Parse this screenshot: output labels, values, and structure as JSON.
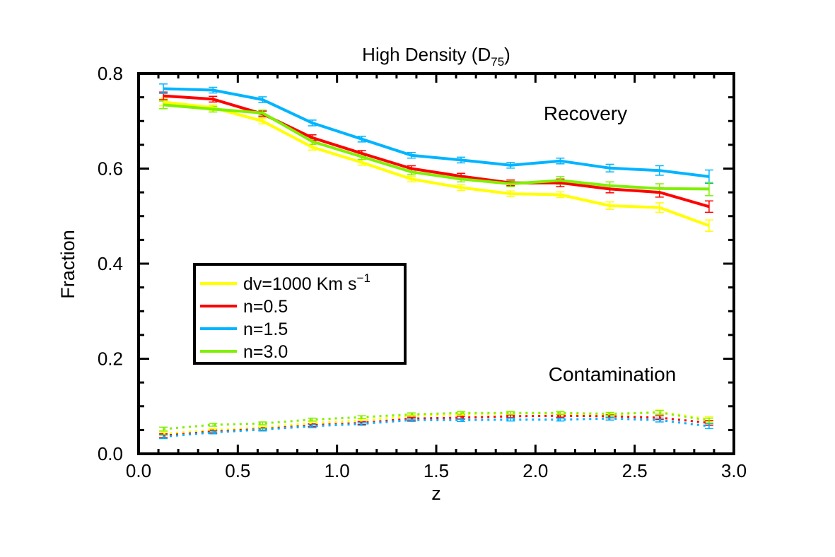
{
  "chart_data": {
    "type": "line",
    "title": {
      "main": "High Density (D",
      "sub": "75",
      "close": ")"
    },
    "xlabel": "z",
    "ylabel": "Fraction",
    "xlim": [
      0.0,
      3.0
    ],
    "ylim": [
      0.0,
      0.8
    ],
    "xticks": [
      {
        "v": 0.0,
        "label": "0.0"
      },
      {
        "v": 0.5,
        "label": "0.5"
      },
      {
        "v": 1.0,
        "label": "1.0"
      },
      {
        "v": 1.5,
        "label": "1.5"
      },
      {
        "v": 2.0,
        "label": "2.0"
      },
      {
        "v": 2.5,
        "label": "2.5"
      },
      {
        "v": 3.0,
        "label": "3.0"
      }
    ],
    "yticks": [
      {
        "v": 0.0,
        "label": "0.0"
      },
      {
        "v": 0.2,
        "label": "0.2"
      },
      {
        "v": 0.4,
        "label": "0.4"
      },
      {
        "v": 0.6,
        "label": "0.6"
      },
      {
        "v": 0.8,
        "label": "0.8"
      }
    ],
    "annotations": {
      "recovery": "Recovery",
      "contamination": "Contamination"
    },
    "legend": {
      "placement": "left-middle",
      "entries": [
        {
          "label": "dv=1000 Km s",
          "sup": "−1",
          "color": "#ffff00"
        },
        {
          "label": "n=0.5",
          "color": "#ff0000"
        },
        {
          "label": "n=1.5",
          "color": "#00b4ff"
        },
        {
          "label": "n=3.0",
          "color": "#7ff000"
        }
      ]
    },
    "x": [
      0.125,
      0.375,
      0.625,
      0.875,
      1.125,
      1.375,
      1.625,
      1.875,
      2.125,
      2.375,
      2.625,
      2.875
    ],
    "series": [
      {
        "name": "dv=1000 Km s-1 recovery",
        "group": "recovery",
        "color": "#ffff00",
        "values": [
          0.74,
          0.728,
          0.7,
          0.645,
          0.613,
          0.578,
          0.56,
          0.547,
          0.545,
          0.522,
          0.518,
          0.48
        ],
        "err": [
          0.008,
          0.006,
          0.006,
          0.006,
          0.006,
          0.006,
          0.006,
          0.006,
          0.006,
          0.008,
          0.01,
          0.012
        ]
      },
      {
        "name": "n=0.5 recovery",
        "group": "recovery",
        "color": "#ff0000",
        "values": [
          0.753,
          0.746,
          0.715,
          0.665,
          0.632,
          0.6,
          0.584,
          0.57,
          0.57,
          0.557,
          0.55,
          0.52
        ],
        "err": [
          0.008,
          0.006,
          0.006,
          0.006,
          0.006,
          0.006,
          0.006,
          0.006,
          0.008,
          0.008,
          0.01,
          0.012
        ]
      },
      {
        "name": "n=1.5 recovery",
        "group": "recovery",
        "color": "#00b4ff",
        "values": [
          0.768,
          0.765,
          0.745,
          0.696,
          0.662,
          0.628,
          0.618,
          0.607,
          0.616,
          0.601,
          0.596,
          0.583
        ],
        "err": [
          0.01,
          0.006,
          0.006,
          0.006,
          0.006,
          0.006,
          0.006,
          0.006,
          0.006,
          0.008,
          0.01,
          0.014
        ]
      },
      {
        "name": "n=3.0 recovery",
        "group": "recovery",
        "color": "#7ff000",
        "values": [
          0.734,
          0.725,
          0.717,
          0.657,
          0.625,
          0.593,
          0.578,
          0.568,
          0.575,
          0.564,
          0.558,
          0.557
        ],
        "err": [
          0.008,
          0.006,
          0.006,
          0.006,
          0.006,
          0.006,
          0.006,
          0.006,
          0.008,
          0.008,
          0.01,
          0.014
        ]
      },
      {
        "name": "dv=1000 Km s-1 contamination",
        "group": "contamination",
        "color": "#ffff00",
        "values": [
          0.042,
          0.05,
          0.055,
          0.065,
          0.07,
          0.08,
          0.083,
          0.085,
          0.085,
          0.082,
          0.088,
          0.073
        ],
        "err": [
          0.004,
          0.003,
          0.003,
          0.003,
          0.003,
          0.003,
          0.003,
          0.003,
          0.003,
          0.003,
          0.004,
          0.005
        ]
      },
      {
        "name": "n=0.5 contamination",
        "group": "contamination",
        "color": "#ff0000",
        "values": [
          0.038,
          0.047,
          0.052,
          0.06,
          0.065,
          0.074,
          0.076,
          0.079,
          0.08,
          0.079,
          0.076,
          0.065
        ],
        "err": [
          0.004,
          0.003,
          0.003,
          0.003,
          0.003,
          0.003,
          0.003,
          0.003,
          0.003,
          0.003,
          0.004,
          0.005
        ]
      },
      {
        "name": "n=1.5 contamination",
        "group": "contamination",
        "color": "#00b4ff",
        "values": [
          0.036,
          0.045,
          0.051,
          0.058,
          0.063,
          0.071,
          0.071,
          0.072,
          0.072,
          0.074,
          0.071,
          0.058
        ],
        "err": [
          0.004,
          0.003,
          0.003,
          0.003,
          0.003,
          0.003,
          0.003,
          0.003,
          0.003,
          0.003,
          0.004,
          0.005
        ]
      },
      {
        "name": "n=3.0 contamination",
        "group": "contamination",
        "color": "#7ff000",
        "values": [
          0.052,
          0.061,
          0.064,
          0.072,
          0.077,
          0.083,
          0.086,
          0.086,
          0.086,
          0.084,
          0.087,
          0.07
        ],
        "err": [
          0.004,
          0.003,
          0.003,
          0.003,
          0.003,
          0.003,
          0.003,
          0.003,
          0.003,
          0.003,
          0.004,
          0.005
        ]
      }
    ]
  }
}
